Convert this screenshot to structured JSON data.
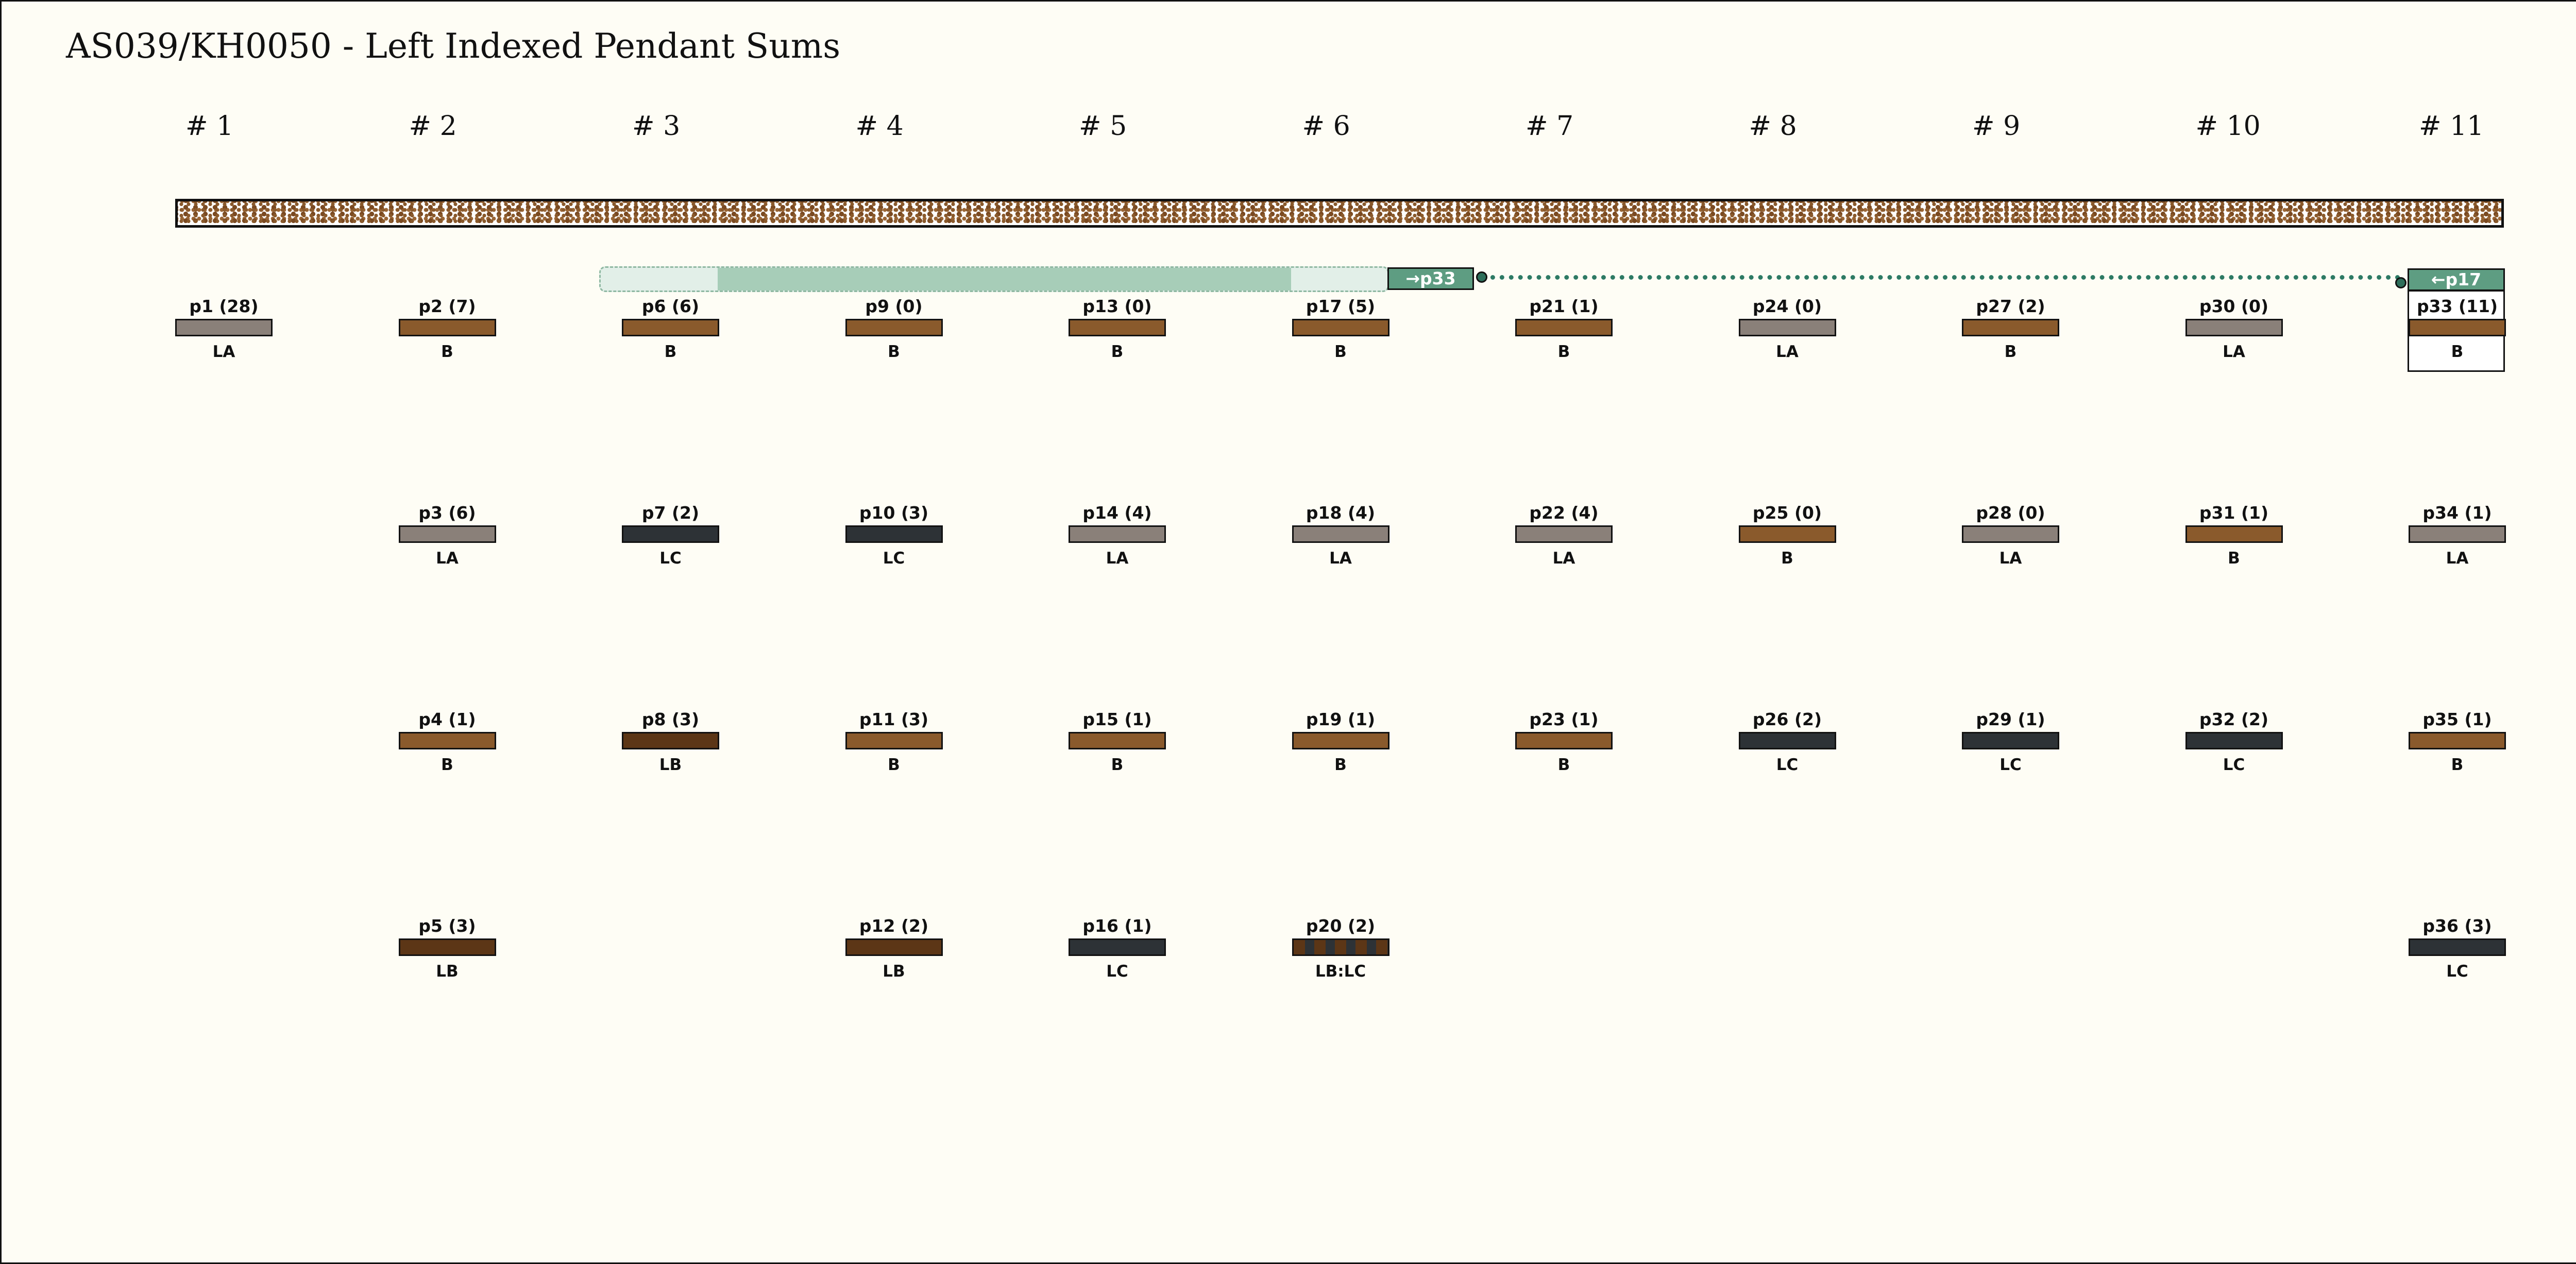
{
  "title": "AS039/KH0050 - Left Indexed Pendant Sums",
  "groups": [
    "# 1",
    "# 2",
    "# 3",
    "# 4",
    "# 5",
    "# 6",
    "# 7",
    "# 8",
    "# 9",
    "# 10",
    "# 11"
  ],
  "colors": {
    "B": "#8a5a2c",
    "LA": "#8a8079",
    "LB": "#5c3616",
    "LC": "#2d3236",
    "link": "#5e9d82",
    "background": "#fefdf5"
  },
  "link": {
    "from_label": "→p33",
    "to_label": "←p17"
  },
  "pendants": [
    {
      "label": "p1 (28)",
      "color": "LA",
      "group": 1,
      "row": 1
    },
    {
      "label": "p2 (7)",
      "color": "B",
      "group": 2,
      "row": 1
    },
    {
      "label": "p3 (6)",
      "color": "LA",
      "group": 2,
      "row": 2
    },
    {
      "label": "p4 (1)",
      "color": "B",
      "group": 2,
      "row": 3
    },
    {
      "label": "p5 (3)",
      "color": "LB",
      "group": 2,
      "row": 4
    },
    {
      "label": "p6 (6)",
      "color": "B",
      "group": 3,
      "row": 1
    },
    {
      "label": "p7 (2)",
      "color": "LC",
      "group": 3,
      "row": 2
    },
    {
      "label": "p8 (3)",
      "color": "LB",
      "group": 3,
      "row": 3
    },
    {
      "label": "p9 (0)",
      "color": "B",
      "group": 4,
      "row": 1
    },
    {
      "label": "p10 (3)",
      "color": "LC",
      "group": 4,
      "row": 2
    },
    {
      "label": "p11 (3)",
      "color": "B",
      "group": 4,
      "row": 3
    },
    {
      "label": "p12 (2)",
      "color": "LB",
      "group": 4,
      "row": 4
    },
    {
      "label": "p13 (0)",
      "color": "B",
      "group": 5,
      "row": 1
    },
    {
      "label": "p14 (4)",
      "color": "LA",
      "group": 5,
      "row": 2
    },
    {
      "label": "p15 (1)",
      "color": "B",
      "group": 5,
      "row": 3
    },
    {
      "label": "p16 (1)",
      "color": "LC",
      "group": 5,
      "row": 4
    },
    {
      "label": "p17 (5)",
      "color": "B",
      "group": 6,
      "row": 1
    },
    {
      "label": "p18 (4)",
      "color": "LA",
      "group": 6,
      "row": 2
    },
    {
      "label": "p19 (1)",
      "color": "B",
      "group": 6,
      "row": 3
    },
    {
      "label": "p20 (2)",
      "color": "LB:LC",
      "group": 6,
      "row": 4
    },
    {
      "label": "p21 (1)",
      "color": "B",
      "group": 7,
      "row": 1
    },
    {
      "label": "p22 (4)",
      "color": "LA",
      "group": 7,
      "row": 2
    },
    {
      "label": "p23 (1)",
      "color": "B",
      "group": 7,
      "row": 3
    },
    {
      "label": "p24 (0)",
      "color": "LA",
      "group": 8,
      "row": 1
    },
    {
      "label": "p25 (0)",
      "color": "B",
      "group": 8,
      "row": 2
    },
    {
      "label": "p26 (2)",
      "color": "LC",
      "group": 8,
      "row": 3
    },
    {
      "label": "p27 (2)",
      "color": "B",
      "group": 9,
      "row": 1
    },
    {
      "label": "p28 (0)",
      "color": "LA",
      "group": 9,
      "row": 2
    },
    {
      "label": "p29 (1)",
      "color": "LC",
      "group": 9,
      "row": 3
    },
    {
      "label": "p30 (0)",
      "color": "LA",
      "group": 10,
      "row": 1
    },
    {
      "label": "p31 (1)",
      "color": "B",
      "group": 10,
      "row": 2
    },
    {
      "label": "p32 (2)",
      "color": "LC",
      "group": 10,
      "row": 3
    },
    {
      "label": "p33 (11)",
      "color": "B",
      "group": 11,
      "row": 1
    },
    {
      "label": "p34 (1)",
      "color": "LA",
      "group": 11,
      "row": 2
    },
    {
      "label": "p35 (1)",
      "color": "B",
      "group": 11,
      "row": 3
    },
    {
      "label": "p36 (3)",
      "color": "LC",
      "group": 11,
      "row": 4
    }
  ]
}
